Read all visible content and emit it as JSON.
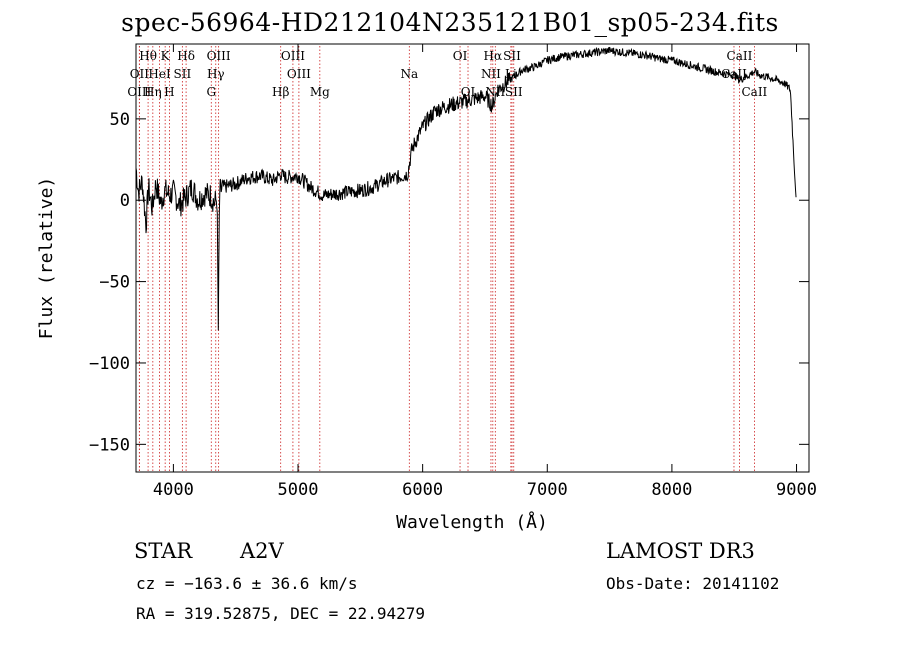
{
  "title": "spec-56964-HD212104N235121B01_sp05-234.fits",
  "info": {
    "object_class": "STAR",
    "subclass": "A2V",
    "survey": "LAMOST DR3",
    "cz": "cz = −163.6 ± 36.6 km/s",
    "obs_date": "Obs-Date: 20141102",
    "coords": "RA = 319.52875, DEC =  22.94279"
  },
  "chart_data": {
    "type": "line",
    "title": "spec-56964-HD212104N235121B01_sp05-234.fits",
    "xlabel": "Wavelength (Å)",
    "ylabel": "Flux (relative)",
    "xlim": [
      3700,
      9100
    ],
    "ylim": [
      -167,
      96
    ],
    "xticks": [
      4000,
      5000,
      6000,
      7000,
      8000,
      9000
    ],
    "yticks": [
      -150,
      -100,
      -50,
      0,
      50
    ],
    "ytick_labels": [
      "−150",
      "−100",
      "−50",
      "0",
      "50"
    ],
    "line_color": "#000000",
    "marker_color": "#cc2222",
    "series": [
      {
        "name": "flux",
        "x": [
          3700,
          3720,
          3750,
          3780,
          3800,
          3830,
          3860,
          3900,
          3930,
          3970,
          4000,
          4050,
          4100,
          4150,
          4200,
          4250,
          4300,
          4330,
          4350,
          4360,
          4370,
          4400,
          4500,
          4600,
          4700,
          4800,
          4860,
          4900,
          5000,
          5100,
          5200,
          5300,
          5400,
          5500,
          5600,
          5700,
          5800,
          5880,
          5910,
          5930,
          6000,
          6100,
          6200,
          6300,
          6400,
          6500,
          6560,
          6600,
          6700,
          6800,
          6900,
          7000,
          7100,
          7200,
          7300,
          7400,
          7500,
          7600,
          7700,
          7800,
          7900,
          8000,
          8100,
          8200,
          8300,
          8400,
          8500,
          8540,
          8600,
          8660,
          8700,
          8800,
          8900,
          8950,
          8990,
          9000
        ],
        "y": [
          20,
          5,
          12,
          -15,
          8,
          -5,
          10,
          -2,
          6,
          3,
          5,
          -3,
          2,
          8,
          0,
          4,
          3,
          -2,
          2,
          -80,
          5,
          8,
          10,
          14,
          15,
          12,
          16,
          14,
          15,
          8,
          3,
          4,
          5,
          6,
          8,
          12,
          14,
          16,
          30,
          34,
          45,
          55,
          58,
          60,
          62,
          64,
          58,
          68,
          74,
          80,
          82,
          86,
          88,
          89,
          90,
          91,
          92,
          91,
          90,
          89,
          87,
          86,
          84,
          82,
          80,
          78,
          77,
          74,
          76,
          79,
          77,
          75,
          72,
          68,
          10,
          0
        ]
      }
    ],
    "lines": [
      {
        "label": "Hθ",
        "x": 3797,
        "row": 0
      },
      {
        "label": "K",
        "x": 3934,
        "row": 0
      },
      {
        "label": "Hδ",
        "x": 4102,
        "row": 0
      },
      {
        "label": "OIII",
        "x": 4363,
        "row": 0
      },
      {
        "label": "OIII",
        "x": 4959,
        "row": 0
      },
      {
        "label": "OI",
        "x": 6300,
        "row": 0
      },
      {
        "label": "Hα",
        "x": 6563,
        "row": 0
      },
      {
        "label": "SII",
        "x": 6717,
        "row": 0
      },
      {
        "label": "CaII",
        "x": 8542,
        "row": 0
      },
      {
        "label": "OII",
        "x": 3727,
        "row": 1
      },
      {
        "label": "HeI",
        "x": 3889,
        "row": 1
      },
      {
        "label": "SII",
        "x": 4072,
        "row": 1
      },
      {
        "label": "Hγ",
        "x": 4340,
        "row": 1
      },
      {
        "label": "OIII",
        "x": 5007,
        "row": 1
      },
      {
        "label": "Na",
        "x": 5893,
        "row": 1
      },
      {
        "label": "NII",
        "x": 6548,
        "row": 1
      },
      {
        "label": "Li",
        "x": 6708,
        "row": 1
      },
      {
        "label": "CaII",
        "x": 8498,
        "row": 1
      },
      {
        "label": "OIII",
        "x": 3727,
        "row": 2
      },
      {
        "label": "Hη",
        "x": 3835,
        "row": 2
      },
      {
        "label": "H",
        "x": 3968,
        "row": 2
      },
      {
        "label": "G",
        "x": 4304,
        "row": 2
      },
      {
        "label": "Hβ",
        "x": 4861,
        "row": 2
      },
      {
        "label": "Mg",
        "x": 5175,
        "row": 2
      },
      {
        "label": "OI",
        "x": 6364,
        "row": 2
      },
      {
        "label": "NII",
        "x": 6583,
        "row": 2
      },
      {
        "label": "SII",
        "x": 6731,
        "row": 2
      },
      {
        "label": "CaII",
        "x": 8662,
        "row": 2
      }
    ]
  }
}
